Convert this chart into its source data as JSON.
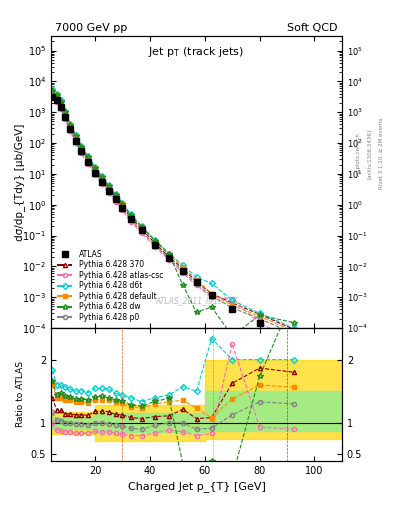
{
  "title_left": "7000 GeV pp",
  "title_right": "Soft QCD",
  "panel_title": "Jet p_{T} (track jets)",
  "ylabel_main": "dσ/dp_{Tdy} [μb/GeV]",
  "ylabel_ratio": "Ratio to ATLAS",
  "xlabel": "Charged Jet p_{T} [GeV]",
  "watermark": "ATLAS_2011_I919017",
  "rivet_text": "Rivet 3.1.10, ≥ 2M events",
  "arxiv_text": "[arXiv:1306.3436]",
  "mcplots_text": "mcplots.cern.ch",
  "xlim": [
    4,
    110
  ],
  "ylim_main": [
    0.0001,
    300000.0
  ],
  "ylim_ratio": [
    0.4,
    2.5
  ],
  "atlas_pt": [
    4.5,
    6,
    7.5,
    9,
    11,
    13,
    15,
    17.5,
    20,
    22.5,
    25,
    27.5,
    30,
    33,
    37,
    42,
    47,
    52,
    57,
    62.5,
    70,
    80,
    92.5
  ],
  "atlas_sigma": [
    3000,
    2500,
    1500,
    700,
    280,
    120,
    55,
    25,
    11,
    5.5,
    2.8,
    1.5,
    0.8,
    0.35,
    0.15,
    0.05,
    0.018,
    0.007,
    0.003,
    0.0012,
    0.0004,
    0.00015,
    5e-05
  ],
  "atlas_err": [
    300,
    250,
    150,
    70,
    28,
    12,
    5.5,
    2.5,
    1.1,
    0.55,
    0.28,
    0.15,
    0.08,
    0.035,
    0.015,
    0.005,
    0.0018,
    0.0007,
    0.0003,
    0.00012,
    4e-05,
    1.5e-05,
    5e-06
  ],
  "p370_pt": [
    4.5,
    6,
    7.5,
    9,
    11,
    13,
    15,
    17.5,
    20,
    22.5,
    25,
    27.5,
    30,
    33,
    37,
    42,
    47,
    52,
    57,
    62.5,
    70,
    80,
    92.5
  ],
  "p370_sigma": [
    4200,
    3000,
    1800,
    800,
    320,
    135,
    62,
    28,
    13,
    6.5,
    3.3,
    1.7,
    0.9,
    0.38,
    0.16,
    0.055,
    0.02,
    0.0085,
    0.0032,
    0.0013,
    0.00065,
    0.00028,
    9e-05
  ],
  "pcsc_pt": [
    4.5,
    6,
    7.5,
    9,
    11,
    13,
    15,
    17.5,
    20,
    22.5,
    25,
    27.5,
    30,
    33,
    37,
    42,
    47,
    52,
    57,
    62.5,
    70,
    80,
    92.5
  ],
  "pcsc_sigma": [
    3000,
    2200,
    1300,
    600,
    240,
    100,
    46,
    21,
    9.5,
    4.7,
    2.4,
    1.25,
    0.66,
    0.28,
    0.12,
    0.042,
    0.016,
    0.006,
    0.0024,
    0.001,
    0.0009,
    0.00014,
    4.5e-05
  ],
  "pd6t_pt": [
    4.5,
    6,
    7.5,
    9,
    11,
    13,
    15,
    17.5,
    20,
    22.5,
    25,
    27.5,
    30,
    33,
    37,
    42,
    47,
    52,
    57,
    62.5,
    70,
    80,
    92.5
  ],
  "pd6t_sigma": [
    5500,
    4000,
    2400,
    1100,
    430,
    180,
    83,
    37,
    17,
    8.5,
    4.3,
    2.2,
    1.15,
    0.49,
    0.2,
    0.07,
    0.026,
    0.011,
    0.0045,
    0.0028,
    0.0008,
    0.0003,
    0.0001
  ],
  "pdef_pt": [
    4.5,
    6,
    7.5,
    9,
    11,
    13,
    15,
    17.5,
    20,
    22.5,
    25,
    27.5,
    30,
    33,
    37,
    42,
    47,
    52,
    57,
    62.5,
    70,
    80,
    92.5
  ],
  "pdef_sigma": [
    4800,
    3500,
    2100,
    950,
    380,
    160,
    73,
    33,
    15,
    7.5,
    3.8,
    2.0,
    1.05,
    0.44,
    0.185,
    0.065,
    0.024,
    0.0095,
    0.0037,
    0.0013,
    0.00055,
    0.00024,
    7.8e-05
  ],
  "pdw_pt": [
    4.5,
    6,
    7.5,
    9,
    11,
    13,
    15,
    17.5,
    20,
    22.5,
    25,
    27.5,
    30,
    33,
    37,
    42,
    47,
    52,
    57,
    62.5,
    70,
    80,
    92.5
  ],
  "pdw_sigma": [
    5000,
    3600,
    2200,
    1000,
    395,
    165,
    76,
    34,
    15.5,
    7.8,
    3.9,
    2.05,
    1.08,
    0.45,
    0.19,
    0.067,
    0.025,
    0.0025,
    0.00032,
    0.00048,
    5.5e-05,
    0.00026,
    0.00015
  ],
  "pp0_pt": [
    4.5,
    6,
    7.5,
    9,
    11,
    13,
    15,
    17.5,
    20,
    22.5,
    25,
    27.5,
    30,
    33,
    37,
    42,
    47,
    52,
    57,
    62.5,
    70,
    80,
    92.5
  ],
  "pp0_sigma": [
    3500,
    2600,
    1550,
    700,
    280,
    118,
    54,
    24,
    11,
    5.5,
    2.75,
    1.45,
    0.76,
    0.32,
    0.135,
    0.048,
    0.018,
    0.007,
    0.0027,
    0.0011,
    0.00045,
    0.0002,
    6.5e-05
  ],
  "colors": {
    "atlas": "#000000",
    "p370": "#8B0000",
    "pcsc": "#FF69B4",
    "pd6t": "#00CED1",
    "pdef": "#FF8C00",
    "pdw": "#228B22",
    "pp0": "#808080"
  },
  "band_yellow_x": [
    4,
    20,
    40,
    60,
    80,
    100,
    110
  ],
  "band_yellow_y1": [
    0.83,
    0.78,
    0.72,
    0.75,
    0.75,
    0.75,
    0.75
  ],
  "band_yellow_y2": [
    1.17,
    1.22,
    1.28,
    1.25,
    2.0,
    2.0,
    2.0
  ],
  "band_green_x": [
    4,
    20,
    40,
    60,
    80,
    100,
    110
  ],
  "band_green_y1": [
    0.9,
    0.88,
    0.85,
    0.87,
    0.87,
    0.87,
    0.87
  ],
  "band_green_y2": [
    1.1,
    1.12,
    1.15,
    1.13,
    1.5,
    1.5,
    1.5
  ]
}
